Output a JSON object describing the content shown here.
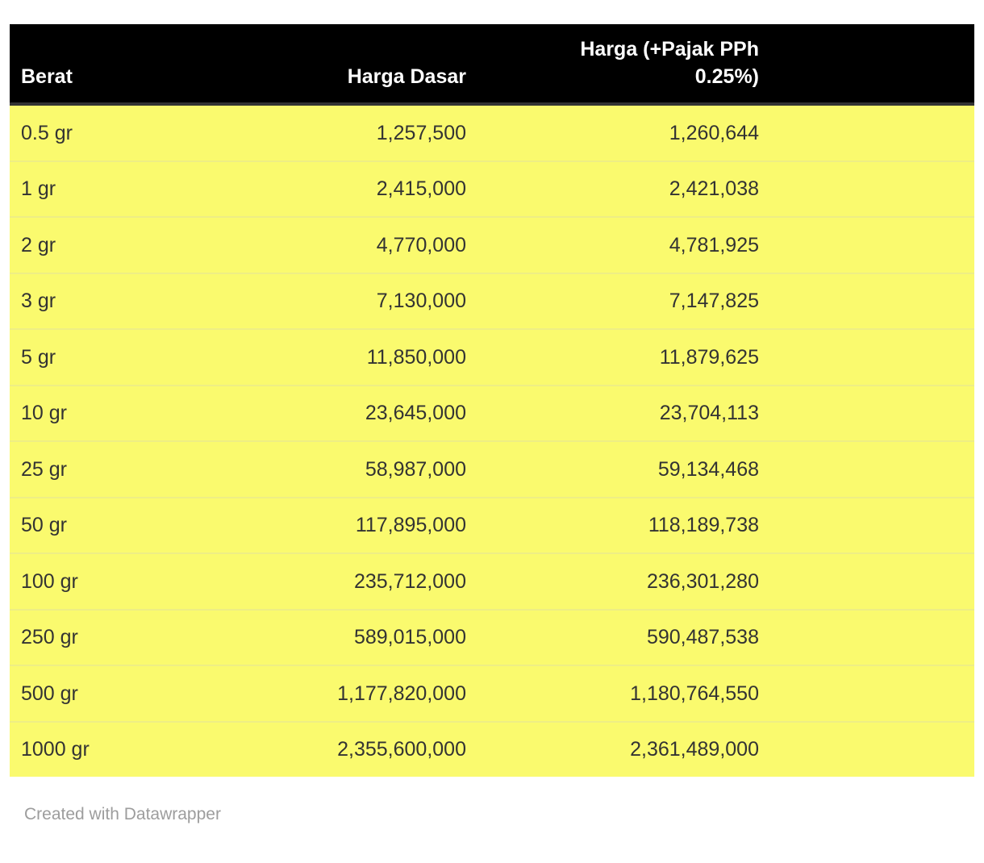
{
  "chart_data": {
    "type": "table",
    "columns": [
      {
        "label": "Berat",
        "align": "left"
      },
      {
        "label": "Harga Dasar",
        "align": "right"
      },
      {
        "label": "Harga (+Pajak PPh 0.25%)",
        "align": "right"
      }
    ],
    "rows": [
      [
        "0.5 gr",
        "1,257,500",
        "1,260,644"
      ],
      [
        "1 gr",
        "2,415,000",
        "2,421,038"
      ],
      [
        "2 gr",
        "4,770,000",
        "4,781,925"
      ],
      [
        "3 gr",
        "7,130,000",
        "7,147,825"
      ],
      [
        "5 gr",
        "11,850,000",
        "11,879,625"
      ],
      [
        "10 gr",
        "23,645,000",
        "23,704,113"
      ],
      [
        "25 gr",
        "58,987,000",
        "59,134,468"
      ],
      [
        "50 gr",
        "117,895,000",
        "118,189,738"
      ],
      [
        "100 gr",
        "235,712,000",
        "236,301,280"
      ],
      [
        "250 gr",
        "589,015,000",
        "590,487,538"
      ],
      [
        "500 gr",
        "1,177,820,000",
        "1,180,764,550"
      ],
      [
        "1000 gr",
        "2,355,600,000",
        "2,361,489,000"
      ]
    ]
  },
  "footer": {
    "credit": "Created with Datawrapper"
  },
  "colors": {
    "header_bg": "#000000",
    "header_text": "#ffffff",
    "header_border": "#333333",
    "row_bg": "#fafa6e",
    "separator": "#eeee85",
    "body_text": "#333333",
    "credit_text": "#9d9d9d"
  }
}
